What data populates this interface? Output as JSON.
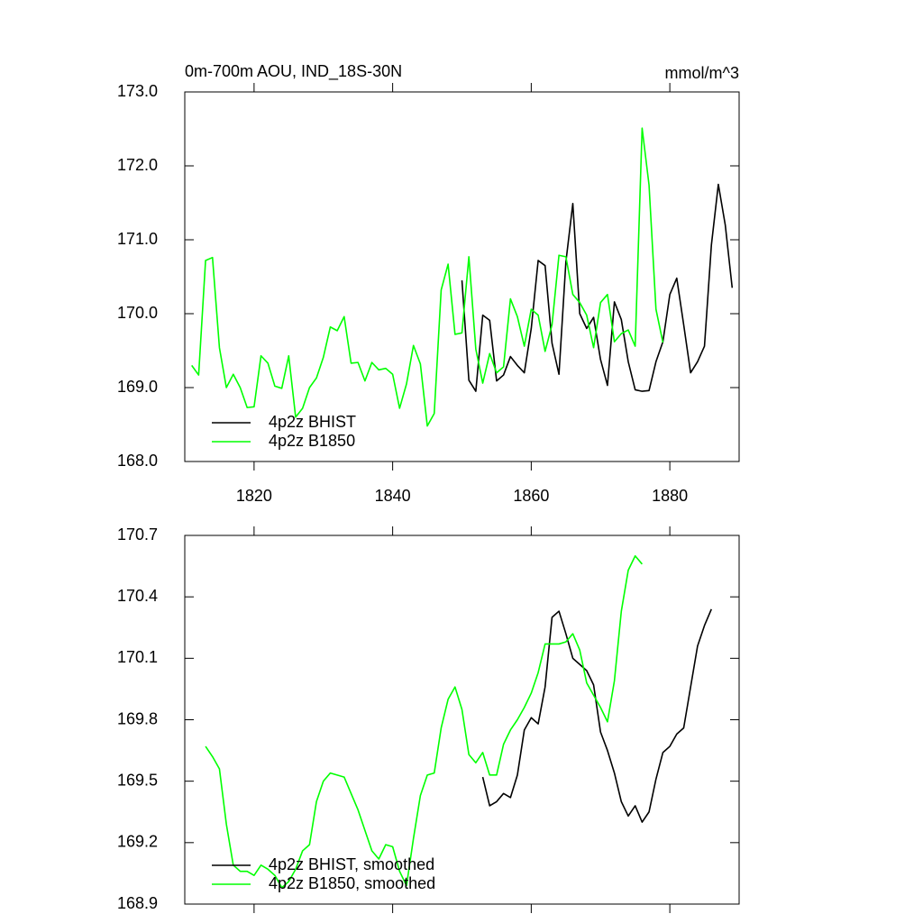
{
  "chart_data": [
    {
      "type": "line",
      "title": "0m-700m AOU, IND_18S-30N",
      "units": "mmol/m^3",
      "x": [
        1810,
        1811,
        1812,
        1813,
        1814,
        1815,
        1816,
        1817,
        1818,
        1819,
        1820,
        1821,
        1822,
        1823,
        1824,
        1825,
        1826,
        1827,
        1828,
        1829,
        1830,
        1831,
        1832,
        1833,
        1834,
        1835,
        1836,
        1837,
        1838,
        1839,
        1840,
        1841,
        1842,
        1843,
        1844,
        1845,
        1846,
        1847,
        1848,
        1849,
        1850,
        1851,
        1852,
        1853,
        1854,
        1855,
        1856,
        1857,
        1858,
        1859,
        1860,
        1861,
        1862,
        1863,
        1864,
        1865,
        1866,
        1867,
        1868,
        1869,
        1870,
        1871,
        1872,
        1873,
        1874,
        1875,
        1876,
        1877,
        1878,
        1879,
        1880,
        1881,
        1882,
        1883,
        1884,
        1885,
        1886,
        1887,
        1888,
        1889
      ],
      "series": [
        {
          "name": "4p2z BHIST",
          "color": "#000000",
          "values": [
            null,
            null,
            null,
            null,
            null,
            null,
            null,
            null,
            null,
            null,
            null,
            null,
            null,
            null,
            null,
            null,
            null,
            null,
            null,
            null,
            null,
            null,
            null,
            null,
            null,
            null,
            null,
            null,
            null,
            null,
            null,
            null,
            null,
            null,
            null,
            null,
            null,
            null,
            null,
            null,
            170.45,
            169.1,
            168.95,
            169.98,
            169.91,
            169.09,
            169.17,
            169.42,
            169.3,
            169.2,
            169.8,
            170.72,
            170.65,
            169.6,
            169.18,
            170.7,
            171.49,
            170.0,
            169.8,
            169.95,
            169.38,
            169.03,
            170.16,
            169.92,
            169.35,
            168.97,
            168.95,
            168.96,
            169.35,
            169.62,
            170.26,
            170.48,
            169.85,
            169.2,
            169.35,
            169.56,
            170.93,
            171.75,
            171.2,
            170.35
          ]
        },
        {
          "name": "4p2z B1850",
          "color": "#00ff00",
          "values": [
            null,
            169.3,
            169.17,
            170.72,
            170.76,
            169.54,
            169.0,
            169.18,
            169.0,
            168.73,
            168.74,
            169.43,
            169.33,
            169.02,
            168.99,
            169.43,
            168.6,
            168.72,
            169.0,
            169.13,
            169.41,
            169.82,
            169.77,
            169.96,
            169.33,
            169.34,
            169.09,
            169.34,
            169.24,
            169.26,
            169.18,
            168.72,
            169.05,
            169.57,
            169.32,
            168.48,
            168.65,
            170.32,
            170.67,
            169.72,
            169.74,
            170.77,
            169.52,
            169.06,
            169.46,
            169.2,
            169.28,
            170.2,
            169.96,
            169.56,
            170.06,
            169.98,
            169.49,
            169.85,
            170.79,
            170.77,
            170.26,
            170.15,
            169.98,
            169.54,
            170.15,
            170.26,
            169.62,
            169.73,
            169.78,
            169.56,
            172.51,
            171.74,
            170.06,
            169.61,
            null,
            null,
            null,
            null,
            null,
            null,
            null,
            null,
            null,
            null
          ]
        }
      ],
      "xlim": [
        1810,
        1890
      ],
      "xticks": [
        1820,
        1840,
        1860,
        1880
      ],
      "ylim": [
        168,
        173
      ],
      "yticks": [
        {
          "value": 168,
          "label": "168.0"
        },
        {
          "value": 169,
          "label": "169.0"
        },
        {
          "value": 170,
          "label": "170.0"
        },
        {
          "value": 171,
          "label": "171.0"
        },
        {
          "value": 172,
          "label": "172.0"
        },
        {
          "value": 173,
          "label": "173.0"
        }
      ],
      "legend": "lower left"
    },
    {
      "type": "line",
      "x": [
        1813,
        1814,
        1815,
        1816,
        1817,
        1818,
        1819,
        1820,
        1821,
        1822,
        1823,
        1824,
        1825,
        1826,
        1827,
        1828,
        1829,
        1830,
        1831,
        1832,
        1833,
        1834,
        1835,
        1836,
        1837,
        1838,
        1839,
        1840,
        1841,
        1842,
        1843,
        1844,
        1845,
        1846,
        1847,
        1848,
        1849,
        1850,
        1851,
        1852,
        1853,
        1854,
        1855,
        1856,
        1857,
        1858,
        1859,
        1860,
        1861,
        1862,
        1863,
        1864,
        1865,
        1866,
        1867,
        1868,
        1869,
        1870,
        1871,
        1872,
        1873,
        1874,
        1875,
        1876,
        1877,
        1878,
        1879,
        1880,
        1881,
        1882,
        1883,
        1884,
        1885,
        1886
      ],
      "series": [
        {
          "name": "4p2z BHIST, smoothed",
          "color": "#000000",
          "values": [
            null,
            null,
            null,
            null,
            null,
            null,
            null,
            null,
            null,
            null,
            null,
            null,
            null,
            null,
            null,
            null,
            null,
            null,
            null,
            null,
            null,
            null,
            null,
            null,
            null,
            null,
            null,
            null,
            null,
            null,
            null,
            null,
            null,
            null,
            null,
            null,
            null,
            null,
            null,
            null,
            169.52,
            169.38,
            169.4,
            169.44,
            169.42,
            169.53,
            169.75,
            169.81,
            169.78,
            169.96,
            170.3,
            170.33,
            170.22,
            170.1,
            170.07,
            170.04,
            169.97,
            169.74,
            169.65,
            169.54,
            169.4,
            169.33,
            169.38,
            169.3,
            169.35,
            169.51,
            169.64,
            169.67,
            169.73,
            169.76,
            169.96,
            170.16,
            170.26,
            170.34
          ]
        },
        {
          "name": "4p2z B1850, smoothed",
          "color": "#00ff00",
          "values": [
            169.67,
            169.62,
            169.56,
            169.29,
            169.09,
            169.06,
            169.06,
            169.04,
            169.09,
            169.07,
            169.04,
            168.98,
            169.01,
            169.07,
            169.16,
            169.19,
            169.4,
            169.5,
            169.54,
            169.53,
            169.52,
            169.44,
            169.36,
            169.26,
            169.16,
            169.12,
            169.19,
            169.18,
            169.06,
            168.99,
            169.22,
            169.43,
            169.53,
            169.54,
            169.76,
            169.9,
            169.96,
            169.85,
            169.63,
            169.59,
            169.64,
            169.53,
            169.53,
            169.68,
            169.75,
            169.8,
            169.86,
            169.93,
            170.03,
            170.17,
            170.17,
            170.17,
            170.18,
            170.22,
            170.14,
            169.98,
            169.92,
            169.86,
            169.79,
            169.99,
            170.33,
            170.53,
            170.6,
            170.56,
            null,
            null,
            null,
            null,
            null,
            null,
            null,
            null,
            null,
            null
          ]
        }
      ],
      "xlim": [
        1810,
        1890
      ],
      "xticks": [
        1820,
        1840,
        1860,
        1880
      ],
      "xtick_labels": false,
      "ylim": [
        168.9,
        170.7
      ],
      "yticks": [
        168.9,
        169.2,
        169.5,
        169.8,
        170.1,
        170.4,
        170.7
      ],
      "legend": "lower left"
    }
  ]
}
